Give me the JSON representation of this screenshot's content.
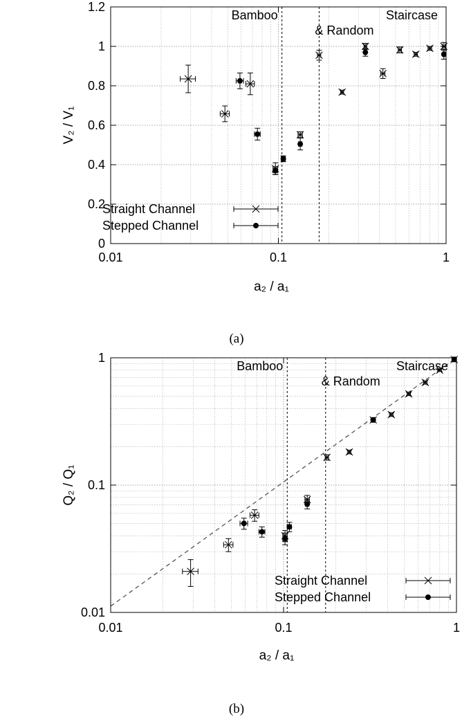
{
  "captions": [
    "(a)",
    "(b)"
  ],
  "chart_data": [
    {
      "type": "scatter",
      "title": "",
      "xlabel": "a₂ / a₁",
      "ylabel": "V₂ / V₁",
      "xscale": "log",
      "yscale": "linear",
      "xlim": [
        0.01,
        1
      ],
      "ylim": [
        0,
        1.2
      ],
      "xticks": [
        0.01,
        0.1,
        1
      ],
      "xtick_labels": [
        "0.01",
        "0.1",
        "1"
      ],
      "yticks": [
        0,
        0.2,
        0.4,
        0.6,
        0.8,
        1,
        1.2
      ],
      "ytick_labels": [
        "0",
        "0.2",
        "0.4",
        "0.6",
        "0.8",
        "1",
        "1.2"
      ],
      "grid": true,
      "legend_position": "bottom-left",
      "regions": [
        {
          "label": "Bamboo",
          "boundary": 0.105
        },
        {
          "label": "Staircase & Random",
          "boundary": 0.175
        }
      ],
      "region_label_lines": [
        "Bamboo",
        "Staircase",
        "& Random"
      ],
      "series": [
        {
          "name": "Straight Channel",
          "marker": "x",
          "points": [
            {
              "x": 0.029,
              "y": 0.835,
              "xerr": 0.003,
              "yerr": 0.07
            },
            {
              "x": 0.048,
              "y": 0.658,
              "xerr": 0.003,
              "yerr": 0.04
            },
            {
              "x": 0.068,
              "y": 0.81,
              "xerr": 0.004,
              "yerr": 0.055
            },
            {
              "x": 0.096,
              "y": 0.38,
              "xerr": 0.003,
              "yerr": 0.03
            },
            {
              "x": 0.135,
              "y": 0.552,
              "xerr": 0.004,
              "yerr": 0.015
            },
            {
              "x": 0.175,
              "y": 0.955,
              "xerr": 0.004,
              "yerr": 0.025
            },
            {
              "x": 0.24,
              "y": 0.768,
              "xerr": 0.005,
              "yerr": 0.01
            },
            {
              "x": 0.33,
              "y": 1.0,
              "xerr": 0.006,
              "yerr": 0.015
            },
            {
              "x": 0.42,
              "y": 0.862,
              "xerr": 0.012,
              "yerr": 0.025
            },
            {
              "x": 0.53,
              "y": 0.982,
              "xerr": 0.012,
              "yerr": 0.015
            },
            {
              "x": 0.66,
              "y": 0.96,
              "xerr": 0.015,
              "yerr": 0.01
            },
            {
              "x": 0.8,
              "y": 0.99,
              "xerr": 0.02,
              "yerr": 0.01
            },
            {
              "x": 0.97,
              "y": 1.0,
              "xerr": 0.02,
              "yerr": 0.02
            }
          ]
        },
        {
          "name": "Stepped Channel",
          "marker": "dot",
          "points": [
            {
              "x": 0.059,
              "y": 0.825,
              "xerr": 0.003,
              "yerr": 0.04
            },
            {
              "x": 0.075,
              "y": 0.555,
              "xerr": 0.003,
              "yerr": 0.03
            },
            {
              "x": 0.096,
              "y": 0.37,
              "xerr": 0.003,
              "yerr": 0.02
            },
            {
              "x": 0.107,
              "y": 0.43,
              "xerr": 0.003,
              "yerr": 0.015
            },
            {
              "x": 0.135,
              "y": 0.505,
              "xerr": 0.003,
              "yerr": 0.03
            },
            {
              "x": 0.33,
              "y": 0.97,
              "xerr": 0.005,
              "yerr": 0.02
            },
            {
              "x": 0.97,
              "y": 0.96,
              "xerr": 0.015,
              "yerr": 0.025
            }
          ]
        }
      ]
    },
    {
      "type": "scatter",
      "title": "",
      "xlabel": "a₂ / a₁",
      "ylabel": "Q₂ / Q₁",
      "xscale": "log",
      "yscale": "log",
      "xlim": [
        0.01,
        1
      ],
      "ylim": [
        0.01,
        1
      ],
      "xticks": [
        0.01,
        0.1,
        1
      ],
      "xtick_labels": [
        "0.01",
        "0.1",
        "1"
      ],
      "yticks": [
        0.01,
        0.1,
        1
      ],
      "ytick_labels": [
        "0.01",
        "0.1",
        "1"
      ],
      "grid": true,
      "legend_position": "bottom-right",
      "regions": [
        {
          "label": "Bamboo",
          "boundary": 0.105
        },
        {
          "label": "Staircase & Random",
          "boundary": 0.175
        }
      ],
      "region_label_lines": [
        "Bamboo",
        "Staircase",
        "& Random"
      ],
      "reference_line": {
        "style": "dashed",
        "x": [
          0.01,
          1
        ],
        "y": [
          0.0112,
          1
        ]
      },
      "series": [
        {
          "name": "Straight Channel",
          "marker": "x",
          "points": [
            {
              "x": 0.029,
              "y": 0.021,
              "xerr": 0.003,
              "yerr": 0.005
            },
            {
              "x": 0.048,
              "y": 0.034,
              "xerr": 0.003,
              "yerr": 0.004
            },
            {
              "x": 0.068,
              "y": 0.058,
              "xerr": 0.004,
              "yerr": 0.006
            },
            {
              "x": 0.102,
              "y": 0.04,
              "xerr": 0.003,
              "yerr": 0.004
            },
            {
              "x": 0.137,
              "y": 0.077,
              "xerr": 0.004,
              "yerr": 0.006
            },
            {
              "x": 0.178,
              "y": 0.165,
              "xerr": 0.004,
              "yerr": 0.008
            },
            {
              "x": 0.24,
              "y": 0.182,
              "xerr": 0.005,
              "yerr": 0.006
            },
            {
              "x": 0.33,
              "y": 0.325,
              "xerr": 0.006,
              "yerr": 0.012
            },
            {
              "x": 0.42,
              "y": 0.358,
              "xerr": 0.01,
              "yerr": 0.012
            },
            {
              "x": 0.53,
              "y": 0.52,
              "xerr": 0.012,
              "yerr": 0.015
            },
            {
              "x": 0.66,
              "y": 0.64,
              "xerr": 0.015,
              "yerr": 0.02
            },
            {
              "x": 0.8,
              "y": 0.8,
              "xerr": 0.02,
              "yerr": 0.02
            },
            {
              "x": 0.97,
              "y": 0.97,
              "xerr": 0.02,
              "yerr": 0.03
            }
          ]
        },
        {
          "name": "Stepped Channel",
          "marker": "dot",
          "points": [
            {
              "x": 0.059,
              "y": 0.05,
              "xerr": 0.003,
              "yerr": 0.005
            },
            {
              "x": 0.075,
              "y": 0.043,
              "xerr": 0.003,
              "yerr": 0.004
            },
            {
              "x": 0.102,
              "y": 0.038,
              "xerr": 0.003,
              "yerr": 0.004
            },
            {
              "x": 0.108,
              "y": 0.047,
              "xerr": 0.003,
              "yerr": 0.004
            },
            {
              "x": 0.137,
              "y": 0.071,
              "xerr": 0.003,
              "yerr": 0.006
            },
            {
              "x": 0.33,
              "y": 0.325,
              "xerr": 0.005,
              "yerr": 0.012
            },
            {
              "x": 0.97,
              "y": 0.97,
              "xerr": 0.015,
              "yerr": 0.03
            }
          ]
        }
      ]
    }
  ]
}
